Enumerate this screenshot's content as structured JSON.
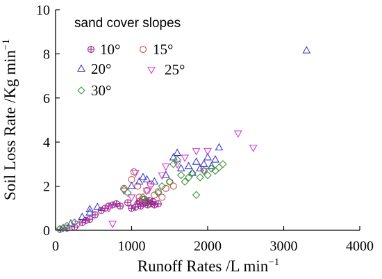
{
  "chart_data": {
    "type": "scatter",
    "title": "",
    "xlabel": "Runoff Rates /L min",
    "xlabel_sup": "−1",
    "ylabel": "Soil Loss Rate /Kg min",
    "ylabel_sup": "−1",
    "xlim": [
      0,
      4000
    ],
    "ylim": [
      0,
      10
    ],
    "xticks": [
      "0",
      "1000",
      "2000",
      "3000",
      "4000"
    ],
    "yticks": [
      "0",
      "2",
      "4",
      "6",
      "8",
      "10"
    ],
    "grid": false,
    "legend_placement": "top-left",
    "legend_title": "sand cover slopes",
    "series": [
      {
        "name": "10°",
        "marker": "crossed-circle",
        "color": "#9b1e8e",
        "points": [
          [
            60,
            0.05
          ],
          [
            150,
            0.1
          ],
          [
            250,
            0.15
          ],
          [
            350,
            0.35
          ],
          [
            400,
            0.45
          ],
          [
            450,
            0.5
          ],
          [
            520,
            0.7
          ],
          [
            600,
            0.9
          ],
          [
            650,
            1.0
          ],
          [
            700,
            1.1
          ],
          [
            750,
            1.15
          ],
          [
            800,
            1.2
          ],
          [
            850,
            1.1
          ],
          [
            950,
            1.25
          ],
          [
            1000,
            1.0
          ],
          [
            1050,
            1.05
          ],
          [
            1080,
            1.2
          ],
          [
            1100,
            1.3
          ],
          [
            1120,
            1.1
          ],
          [
            1150,
            1.2
          ],
          [
            1170,
            1.4
          ],
          [
            1180,
            1.25
          ],
          [
            1200,
            1.3
          ],
          [
            1210,
            1.15
          ],
          [
            1230,
            1.35
          ],
          [
            1250,
            1.2
          ],
          [
            1280,
            1.3
          ],
          [
            1300,
            1.15
          ],
          [
            1350,
            1.2
          ]
        ]
      },
      {
        "name": "15°",
        "marker": "circle",
        "color": "#c0504d",
        "points": [
          [
            900,
            1.9
          ],
          [
            1000,
            2.3
          ],
          [
            1030,
            2.65
          ],
          [
            1080,
            2.0
          ],
          [
            1100,
            1.5
          ],
          [
            1150,
            1.4
          ],
          [
            1200,
            1.8
          ],
          [
            1250,
            2.1
          ],
          [
            1300,
            1.6
          ],
          [
            1350,
            1.75
          ],
          [
            1400,
            1.5
          ],
          [
            1450,
            1.9
          ],
          [
            1500,
            2.2
          ],
          [
            1550,
            2.0
          ]
        ]
      },
      {
        "name": "20°",
        "marker": "triangle-up",
        "color": "#3c3cc8",
        "points": [
          [
            100,
            0.1
          ],
          [
            200,
            0.3
          ],
          [
            350,
            0.6
          ],
          [
            450,
            0.8
          ],
          [
            450,
            0.95
          ],
          [
            550,
            1.05
          ],
          [
            1000,
            2.0
          ],
          [
            1100,
            2.2
          ],
          [
            1150,
            2.4
          ],
          [
            1200,
            2.3
          ],
          [
            1300,
            2.2
          ],
          [
            1450,
            2.5
          ],
          [
            1550,
            3.3
          ],
          [
            1600,
            3.5
          ],
          [
            1650,
            2.8
          ],
          [
            1750,
            2.9
          ],
          [
            1800,
            2.6
          ],
          [
            1850,
            3.1
          ],
          [
            1900,
            2.8
          ],
          [
            1950,
            3.0
          ],
          [
            2000,
            3.3
          ],
          [
            2050,
            2.9
          ],
          [
            2100,
            3.2
          ],
          [
            2150,
            3.75
          ],
          [
            3300,
            8.15
          ]
        ]
      },
      {
        "name": "25°",
        "marker": "triangle-down",
        "color": "#d040d0",
        "points": [
          [
            300,
            0.3
          ],
          [
            700,
            1.0
          ],
          [
            750,
            0.3
          ],
          [
            900,
            1.8
          ],
          [
            1000,
            1.5
          ],
          [
            1050,
            2.6
          ],
          [
            1150,
            1.2
          ],
          [
            1200,
            1.8
          ],
          [
            1250,
            2.0
          ],
          [
            1400,
            2.5
          ],
          [
            1450,
            2.9
          ],
          [
            1600,
            3.0
          ],
          [
            1700,
            3.3
          ],
          [
            1850,
            3.6
          ],
          [
            1950,
            2.7
          ],
          [
            2000,
            3.6
          ],
          [
            2400,
            4.4
          ],
          [
            2600,
            3.75
          ]
        ]
      },
      {
        "name": "30°",
        "marker": "diamond",
        "color": "#3c963c",
        "points": [
          [
            50,
            0.05
          ],
          [
            100,
            0.1
          ],
          [
            150,
            0.2
          ],
          [
            250,
            0.35
          ],
          [
            900,
            1.85
          ],
          [
            950,
            1.7
          ],
          [
            1150,
            1.5
          ],
          [
            1200,
            1.3
          ],
          [
            1350,
            1.7
          ],
          [
            1400,
            2.0
          ],
          [
            1500,
            2.2
          ],
          [
            1550,
            3.0
          ],
          [
            1600,
            3.2
          ],
          [
            1650,
            2.5
          ],
          [
            1700,
            2.2
          ],
          [
            1750,
            2.4
          ],
          [
            1800,
            2.6
          ],
          [
            1850,
            1.6
          ],
          [
            1900,
            2.4
          ],
          [
            1950,
            2.7
          ],
          [
            2000,
            2.5
          ],
          [
            2050,
            2.8
          ],
          [
            2100,
            2.7
          ],
          [
            2150,
            2.85
          ],
          [
            2200,
            3.0
          ]
        ]
      }
    ]
  }
}
